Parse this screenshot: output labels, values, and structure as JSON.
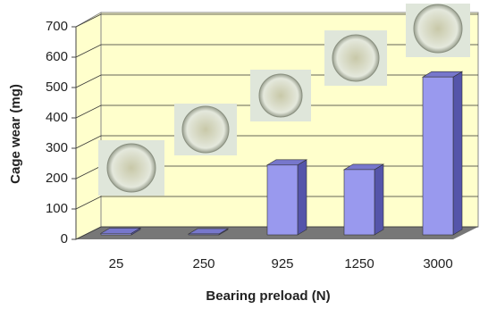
{
  "chart_data": {
    "type": "bar3d",
    "x_label": "Bearing preload (N)",
    "y_label": "Cage wear (mg)",
    "categories": [
      "25",
      "250",
      "925",
      "1250",
      "3000"
    ],
    "values": [
      5,
      3,
      230,
      215,
      520
    ],
    "color": "#9999ee",
    "ylim": [
      0,
      700
    ],
    "yticks": [
      0,
      100,
      200,
      300,
      400,
      500,
      600,
      700
    ],
    "grid": true
  }
}
